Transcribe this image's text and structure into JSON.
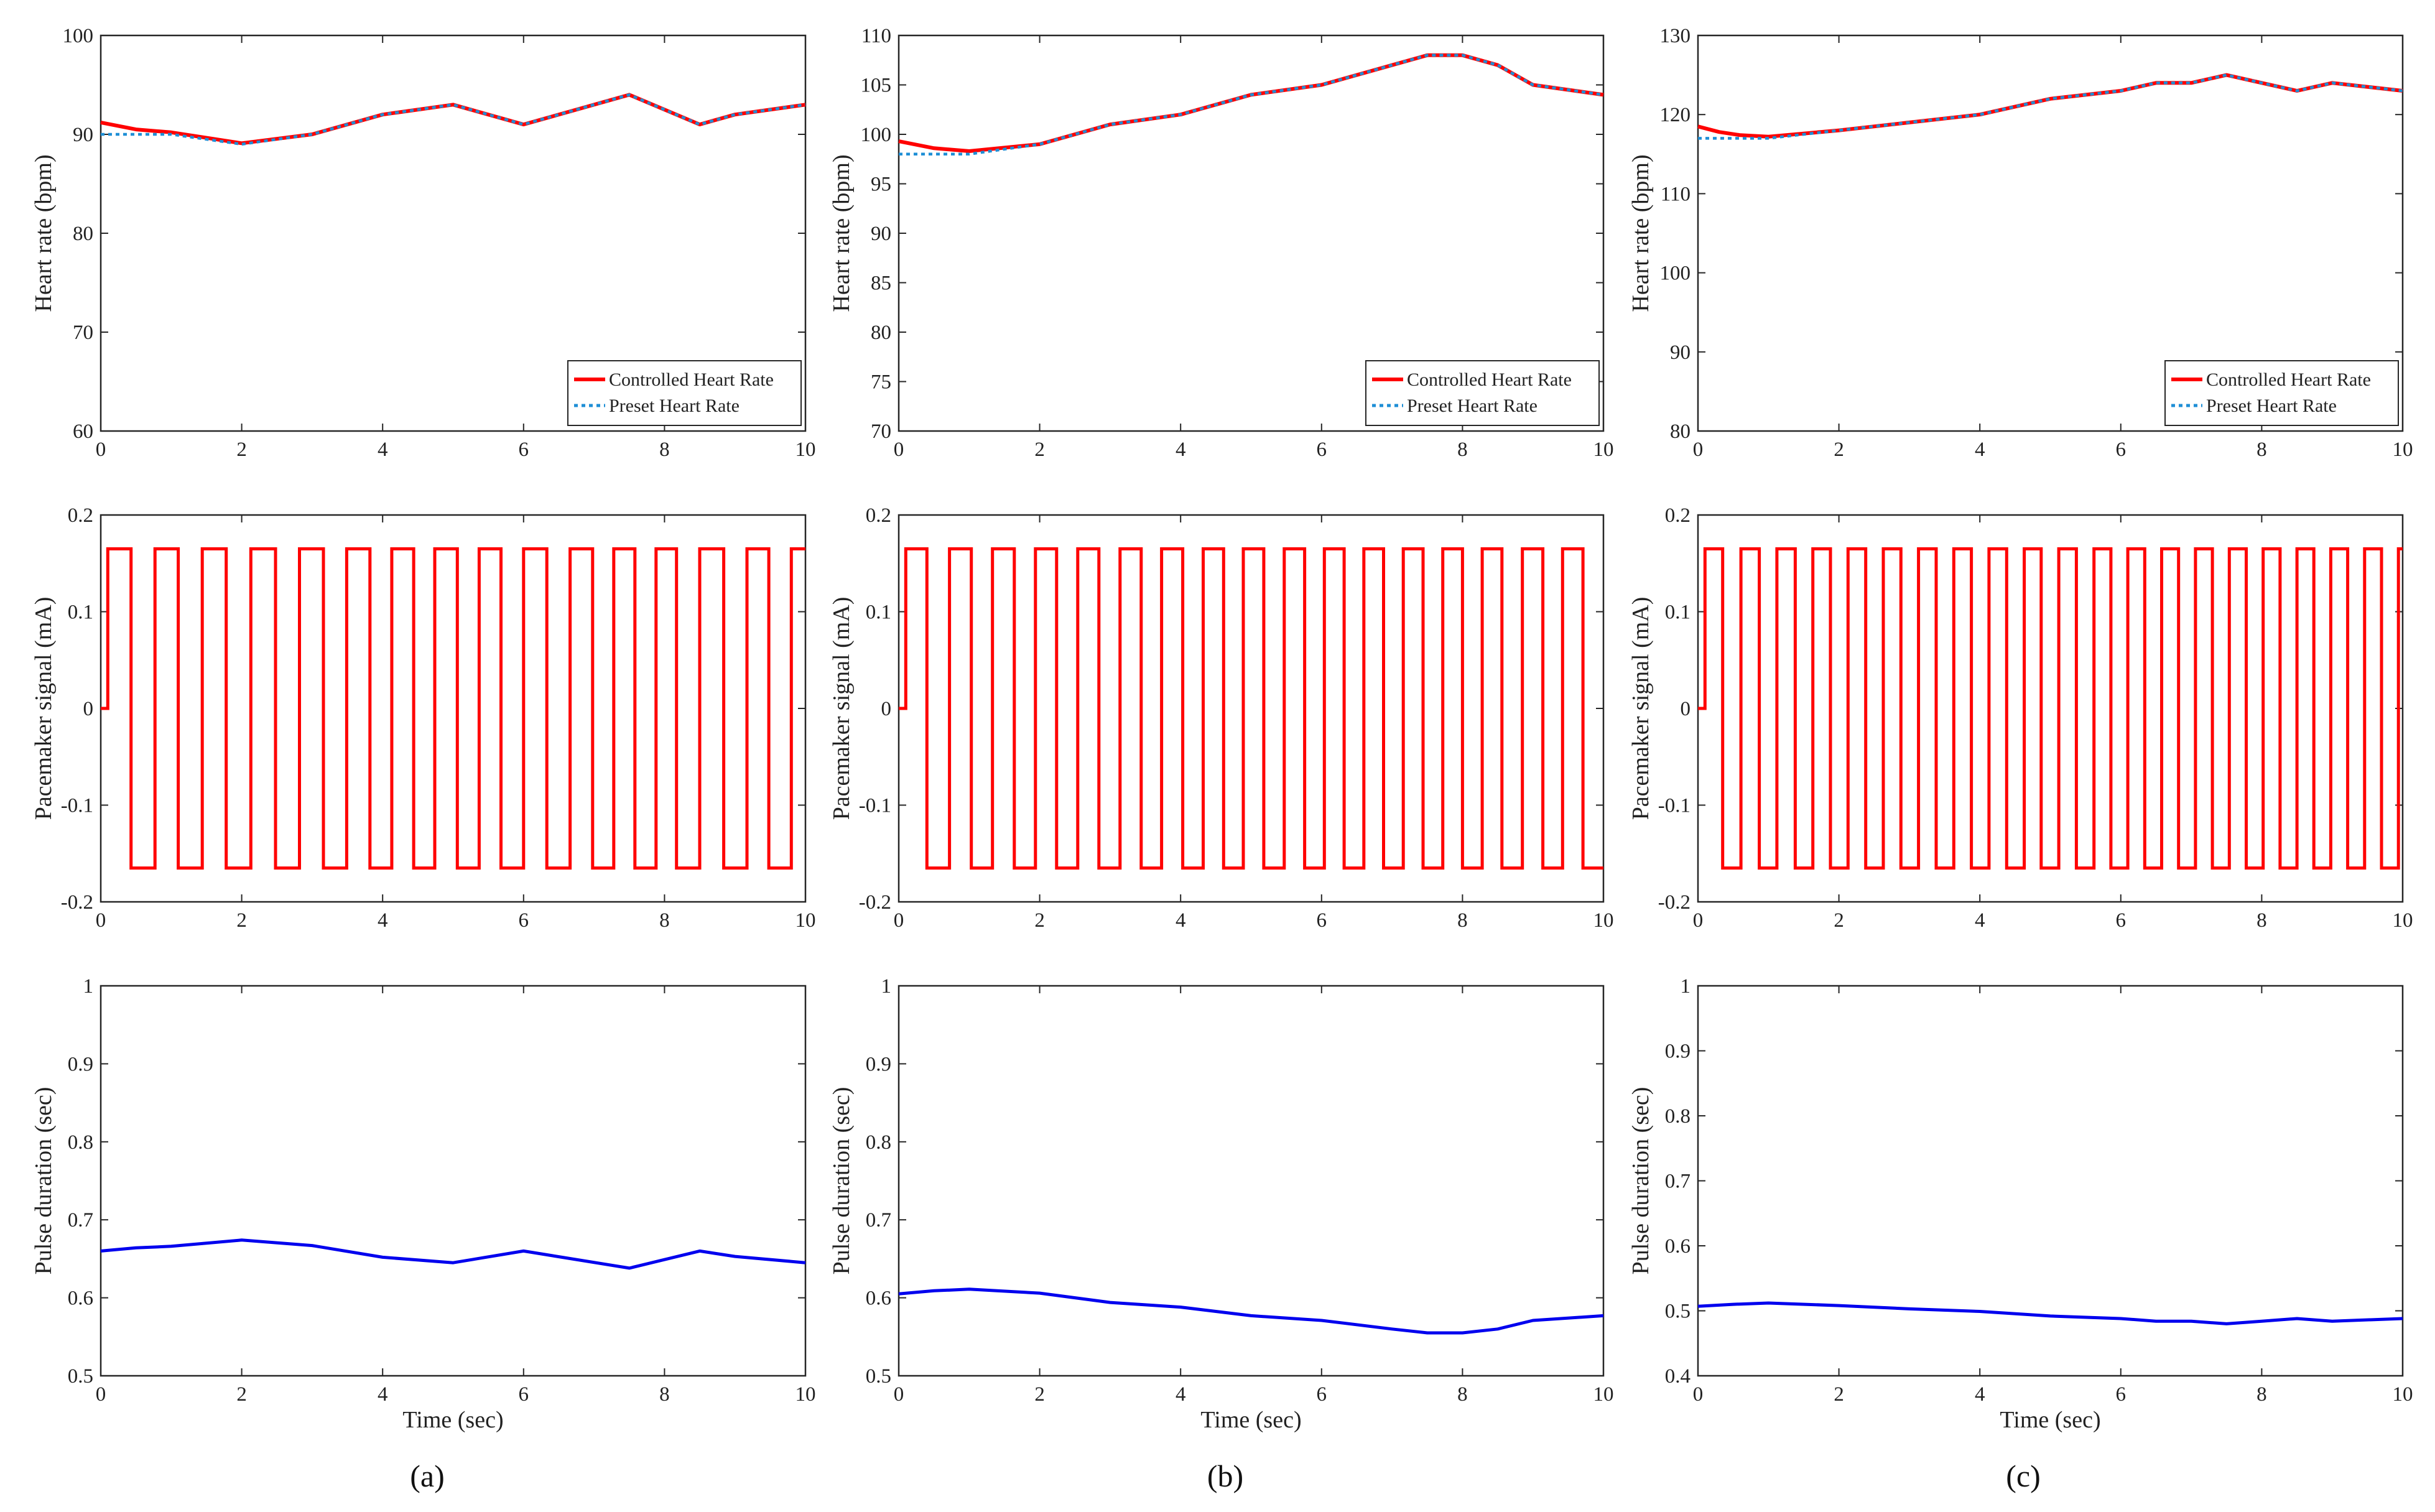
{
  "figure": {
    "colors": {
      "controlled": "#ff0000",
      "preset": "#1f8fd6",
      "pulse": "#0000ee",
      "signal": "#ff0000",
      "axis": "#262626"
    }
  },
  "chart_data": [
    {
      "id": "a1",
      "type": "line",
      "panel": "a",
      "row": "heart",
      "xlim": [
        0,
        10
      ],
      "ylim": [
        60,
        100
      ],
      "xticks": [
        0,
        2,
        4,
        6,
        8,
        10
      ],
      "yticks": [
        60,
        70,
        80,
        90,
        100
      ],
      "xlabel": "",
      "ylabel": "Heart rate (bpm)",
      "legend": [
        "Controlled Heart Rate",
        "Preset Heart Rate"
      ],
      "series": [
        {
          "name": "Controlled Heart Rate",
          "style": "solid",
          "x": [
            0,
            0.5,
            1,
            2,
            3,
            4,
            5,
            6,
            7.5,
            8.5,
            9,
            10
          ],
          "y": [
            91.2,
            90.5,
            90.2,
            89.1,
            90,
            92,
            93,
            91,
            94,
            91,
            92,
            93
          ]
        },
        {
          "name": "Preset Heart Rate",
          "style": "dotted",
          "x": [
            0,
            1,
            2,
            3,
            4,
            5,
            6,
            7.5,
            8.5,
            9,
            10
          ],
          "y": [
            90,
            90,
            89,
            90,
            92,
            93,
            91,
            94,
            91,
            92,
            93
          ]
        }
      ]
    },
    {
      "id": "b1",
      "type": "line",
      "panel": "b",
      "row": "heart",
      "xlim": [
        0,
        10
      ],
      "ylim": [
        70,
        110
      ],
      "xticks": [
        0,
        2,
        4,
        6,
        8,
        10
      ],
      "yticks": [
        70,
        75,
        80,
        85,
        90,
        95,
        100,
        105,
        110
      ],
      "xlabel": "",
      "ylabel": "Heart rate (bpm)",
      "legend": [
        "Controlled Heart Rate",
        "Preset Heart Rate"
      ],
      "series": [
        {
          "name": "Controlled Heart Rate",
          "style": "solid",
          "x": [
            0,
            0.5,
            1,
            2,
            3,
            4,
            5,
            6,
            7,
            7.5,
            8,
            8.5,
            9,
            10
          ],
          "y": [
            99.3,
            98.6,
            98.3,
            99,
            101,
            102,
            104,
            105,
            107,
            108,
            108,
            107,
            105,
            104
          ]
        },
        {
          "name": "Preset Heart Rate",
          "style": "dotted",
          "x": [
            0,
            1,
            2,
            3,
            4,
            5,
            6,
            7,
            7.5,
            8,
            8.5,
            9,
            10
          ],
          "y": [
            98,
            98,
            99,
            101,
            102,
            104,
            105,
            107,
            108,
            108,
            107,
            105,
            104
          ]
        }
      ]
    },
    {
      "id": "c1",
      "type": "line",
      "panel": "c",
      "row": "heart",
      "xlim": [
        0,
        10
      ],
      "ylim": [
        80,
        130
      ],
      "xticks": [
        0,
        2,
        4,
        6,
        8,
        10
      ],
      "yticks": [
        80,
        90,
        100,
        110,
        120,
        130
      ],
      "xlabel": "",
      "ylabel": "Heart rate (bpm)",
      "legend": [
        "Controlled Heart Rate",
        "Preset Heart Rate"
      ],
      "series": [
        {
          "name": "Controlled Heart Rate",
          "style": "solid",
          "x": [
            0,
            0.3,
            0.6,
            1,
            2,
            3,
            4,
            5,
            6,
            6.5,
            7,
            7.5,
            8,
            8.5,
            9,
            10
          ],
          "y": [
            118.5,
            117.8,
            117.4,
            117.2,
            118,
            119,
            120,
            122,
            123,
            124,
            124,
            125,
            124,
            123,
            124,
            123
          ]
        },
        {
          "name": "Preset Heart Rate",
          "style": "dotted",
          "x": [
            0,
            1,
            2,
            3,
            4,
            5,
            6,
            6.5,
            7,
            7.5,
            8,
            8.5,
            9,
            10
          ],
          "y": [
            117,
            117,
            118,
            119,
            120,
            122,
            123,
            124,
            124,
            125,
            124,
            123,
            124,
            123
          ]
        }
      ]
    },
    {
      "id": "a2",
      "type": "line",
      "panel": "a",
      "row": "signal",
      "xlim": [
        0,
        10
      ],
      "ylim": [
        -0.2,
        0.2
      ],
      "xticks": [
        0,
        2,
        4,
        6,
        8,
        10
      ],
      "yticks": [
        -0.2,
        -0.1,
        0,
        0.1,
        0.2
      ],
      "xlabel": "",
      "ylabel": "Pacemaker signal (mA)",
      "amplitude": 0.165,
      "onset": 0.1,
      "edges": [
        0.1,
        0.43,
        0.77,
        1.1,
        1.44,
        1.78,
        2.13,
        2.48,
        2.82,
        3.16,
        3.49,
        3.82,
        4.13,
        4.44,
        4.74,
        5.06,
        5.37,
        5.68,
        6.0,
        6.33,
        6.66,
        6.98,
        7.28,
        7.58,
        7.88,
        8.17,
        8.5,
        8.84,
        9.17,
        9.48,
        9.8,
        10.0
      ]
    },
    {
      "id": "b2",
      "type": "line",
      "panel": "b",
      "row": "signal",
      "xlim": [
        0,
        10
      ],
      "ylim": [
        -0.2,
        0.2
      ],
      "xticks": [
        0,
        2,
        4,
        6,
        8,
        10
      ],
      "yticks": [
        -0.2,
        -0.1,
        0,
        0.1,
        0.2
      ],
      "xlabel": "",
      "ylabel": "Pacemaker signal (mA)",
      "amplitude": 0.165,
      "onset": 0.1,
      "edges": [
        0.1,
        0.4,
        0.72,
        1.03,
        1.33,
        1.64,
        1.94,
        2.24,
        2.54,
        2.84,
        3.14,
        3.44,
        3.73,
        4.03,
        4.32,
        4.61,
        4.89,
        5.18,
        5.47,
        5.76,
        6.04,
        6.32,
        6.6,
        6.88,
        7.16,
        7.44,
        7.72,
        8.0,
        8.28,
        8.56,
        8.85,
        9.14,
        9.42,
        9.71,
        10.0
      ]
    },
    {
      "id": "c2",
      "type": "line",
      "panel": "c",
      "row": "signal",
      "xlim": [
        0,
        10
      ],
      "ylim": [
        -0.2,
        0.2
      ],
      "xticks": [
        0,
        2,
        4,
        6,
        8,
        10
      ],
      "yticks": [
        -0.2,
        -0.1,
        0,
        0.1,
        0.2
      ],
      "xlabel": "",
      "ylabel": "Pacemaker signal (mA)",
      "amplitude": 0.165,
      "onset": 0.1,
      "edges": [
        0.1,
        0.35,
        0.61,
        0.87,
        1.12,
        1.38,
        1.63,
        1.88,
        2.13,
        2.38,
        2.63,
        2.88,
        3.13,
        3.38,
        3.63,
        3.88,
        4.13,
        4.38,
        4.63,
        4.87,
        5.12,
        5.37,
        5.62,
        5.86,
        6.1,
        6.34,
        6.58,
        6.82,
        7.06,
        7.3,
        7.54,
        7.78,
        8.02,
        8.26,
        8.5,
        8.74,
        8.98,
        9.22,
        9.46,
        9.7,
        9.94,
        10.0
      ]
    },
    {
      "id": "a3",
      "type": "line",
      "panel": "a",
      "row": "pulse",
      "xlim": [
        0,
        10
      ],
      "ylim": [
        0.5,
        1
      ],
      "xticks": [
        0,
        2,
        4,
        6,
        8,
        10
      ],
      "yticks": [
        0.5,
        0.6,
        0.7,
        0.8,
        0.9,
        1
      ],
      "xlabel": "Time (sec)",
      "ylabel": "Pulse duration (sec)",
      "series": [
        {
          "name": "Pulse duration",
          "style": "solid",
          "x": [
            0,
            0.5,
            1,
            2,
            3,
            4,
            5,
            6,
            7.5,
            8.5,
            9,
            10
          ],
          "y": [
            0.66,
            0.664,
            0.666,
            0.674,
            0.667,
            0.652,
            0.645,
            0.66,
            0.638,
            0.66,
            0.653,
            0.645
          ]
        }
      ]
    },
    {
      "id": "b3",
      "type": "line",
      "panel": "b",
      "row": "pulse",
      "xlim": [
        0,
        10
      ],
      "ylim": [
        0.5,
        1
      ],
      "xticks": [
        0,
        2,
        4,
        6,
        8,
        10
      ],
      "yticks": [
        0.5,
        0.6,
        0.7,
        0.8,
        0.9,
        1
      ],
      "xlabel": "Time (sec)",
      "ylabel": "Pulse duration (sec)",
      "series": [
        {
          "name": "Pulse duration",
          "style": "solid",
          "x": [
            0,
            0.5,
            1,
            2,
            3,
            4,
            5,
            6,
            7,
            7.5,
            8,
            8.5,
            9,
            10
          ],
          "y": [
            0.605,
            0.609,
            0.611,
            0.606,
            0.594,
            0.588,
            0.577,
            0.571,
            0.56,
            0.555,
            0.555,
            0.56,
            0.571,
            0.577
          ]
        }
      ]
    },
    {
      "id": "c3",
      "type": "line",
      "panel": "c",
      "row": "pulse",
      "xlim": [
        0,
        10
      ],
      "ylim": [
        0.4,
        1
      ],
      "xticks": [
        0,
        2,
        4,
        6,
        8,
        10
      ],
      "yticks": [
        0.4,
        0.5,
        0.6,
        0.7,
        0.8,
        0.9,
        1
      ],
      "xlabel": "Time (sec)",
      "ylabel": "Pulse duration (sec)",
      "series": [
        {
          "name": "Pulse duration",
          "style": "solid",
          "x": [
            0,
            0.5,
            1,
            2,
            3,
            4,
            5,
            6,
            6.5,
            7,
            7.5,
            8,
            8.5,
            9,
            10
          ],
          "y": [
            0.507,
            0.51,
            0.512,
            0.508,
            0.503,
            0.499,
            0.492,
            0.488,
            0.484,
            0.484,
            0.48,
            0.484,
            0.488,
            0.484,
            0.488
          ]
        }
      ]
    }
  ],
  "captions": [
    "(a)",
    "(b)",
    "(c)"
  ]
}
